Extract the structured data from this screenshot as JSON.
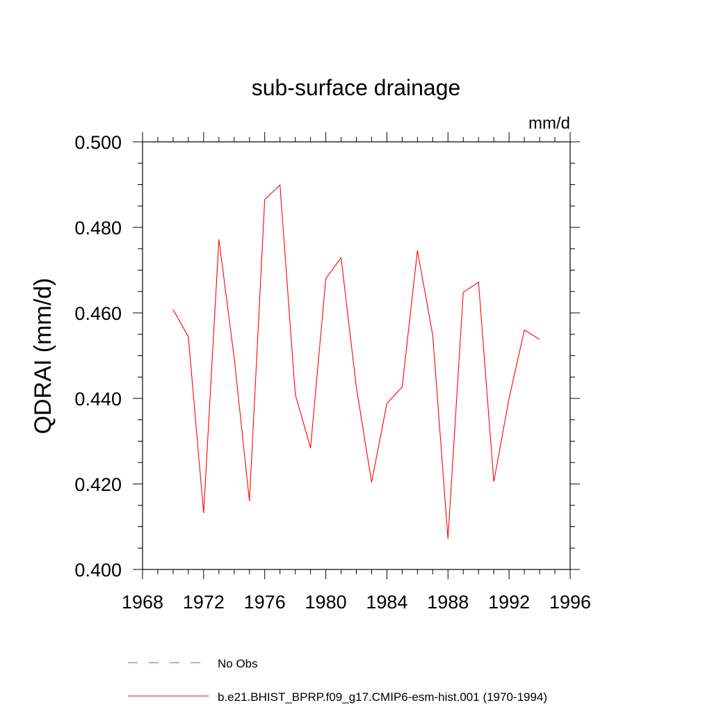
{
  "chart_data": {
    "type": "line",
    "title": "sub-surface drainage",
    "units": "mm/d",
    "ylabel": "QDRAI  (mm/d)",
    "xlabel": "",
    "xlim": [
      1968,
      1996
    ],
    "ylim": [
      0.4,
      0.5
    ],
    "x_ticks": [
      1968,
      1972,
      1976,
      1980,
      1984,
      1988,
      1992,
      1996
    ],
    "x_tick_labels": [
      "1968",
      "1972",
      "1976",
      "1980",
      "1984",
      "1988",
      "1992",
      "1996"
    ],
    "y_ticks": [
      0.4,
      0.42,
      0.44,
      0.46,
      0.48,
      0.5
    ],
    "y_tick_labels": [
      "0.400",
      "0.420",
      "0.440",
      "0.460",
      "0.480",
      "0.500"
    ],
    "grid": false,
    "series": [
      {
        "name": "b.e21.BHIST_BPRP.f09_g17.CMIP6-esm-hist.001 (1970-1994)",
        "color": "#ff0000",
        "x": [
          1970,
          1971,
          1972,
          1973,
          1974,
          1975,
          1976,
          1977,
          1978,
          1979,
          1980,
          1981,
          1982,
          1983,
          1984,
          1985,
          1986,
          1987,
          1988,
          1989,
          1990,
          1991,
          1992,
          1993,
          1994
        ],
        "y": [
          0.4608,
          0.4544,
          0.4132,
          0.4772,
          0.4495,
          0.416,
          0.4865,
          0.4899,
          0.441,
          0.4284,
          0.468,
          0.4729,
          0.4426,
          0.4204,
          0.4388,
          0.4427,
          0.4746,
          0.4548,
          0.4072,
          0.4648,
          0.4672,
          0.4205,
          0.44,
          0.456,
          0.4538
        ]
      }
    ],
    "legend": {
      "placement": "bottom",
      "entries": [
        {
          "label": "No Obs",
          "style": "dashed",
          "color": "#6a5acd"
        },
        {
          "label": "b.e21.BHIST_BPRP.f09_g17.CMIP6-esm-hist.001 (1970-1994)",
          "style": "solid",
          "color": "#ff0000"
        }
      ]
    }
  }
}
